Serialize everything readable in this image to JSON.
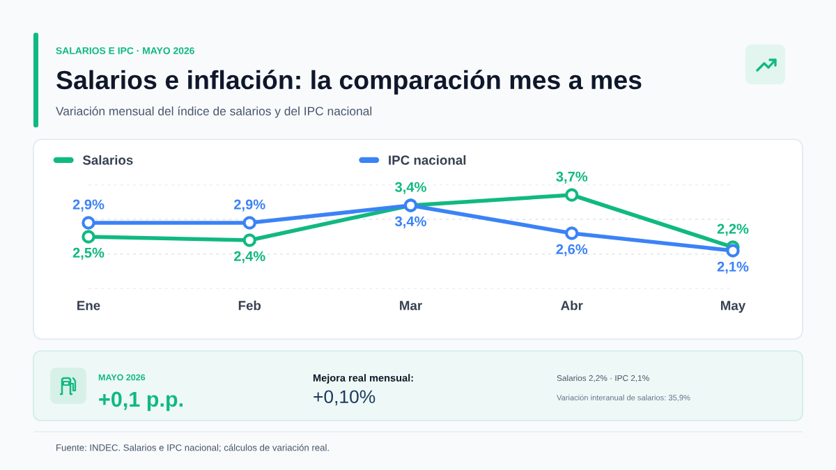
{
  "chart_data": {
    "type": "line",
    "title": "Salarios e inflación: la comparación mes a mes",
    "subtitle": "Variación mensual del índice de salarios y del IPC nacional",
    "categories": [
      "Ene",
      "Feb",
      "Mar",
      "Abr",
      "May"
    ],
    "series": [
      {
        "name": "Salarios",
        "color": "#10b981",
        "values": [
          2.5,
          2.4,
          3.4,
          3.7,
          2.2
        ],
        "value_labels": [
          "2,5%",
          "2,4%",
          "3,4%",
          "3,7%",
          "2,2%"
        ]
      },
      {
        "name": "IPC nacional",
        "color": "#3b82f6",
        "values": [
          2.9,
          2.9,
          3.4,
          2.6,
          2.1
        ],
        "value_labels": [
          "2,9%",
          "2,9%",
          "3,4%",
          "2,6%",
          "2,1%"
        ]
      }
    ],
    "ylim": [
      1,
      4
    ],
    "yticks": [
      {
        "value": 1,
        "label": null
      },
      {
        "value": 2,
        "label": null
      },
      {
        "value": 3,
        "label": null
      },
      {
        "value": 4,
        "label": null
      }
    ],
    "tick_labels": "x",
    "grid": "y",
    "legend": "top",
    "marker": "circle",
    "line_style": "solid",
    "annotations": [
      "SALARIOS E IPC · MAYO 2026",
      "MAYO 2026",
      "+0,1 p.p.",
      "Mejora real mensual:",
      "+0,10%",
      "Salarios 2,2% · IPC 2,1%",
      "Variación interanual de salarios: 35,9%",
      "Fuente: INDEC. Salarios e IPC nacional; cálculos de variación real."
    ]
  }
}
